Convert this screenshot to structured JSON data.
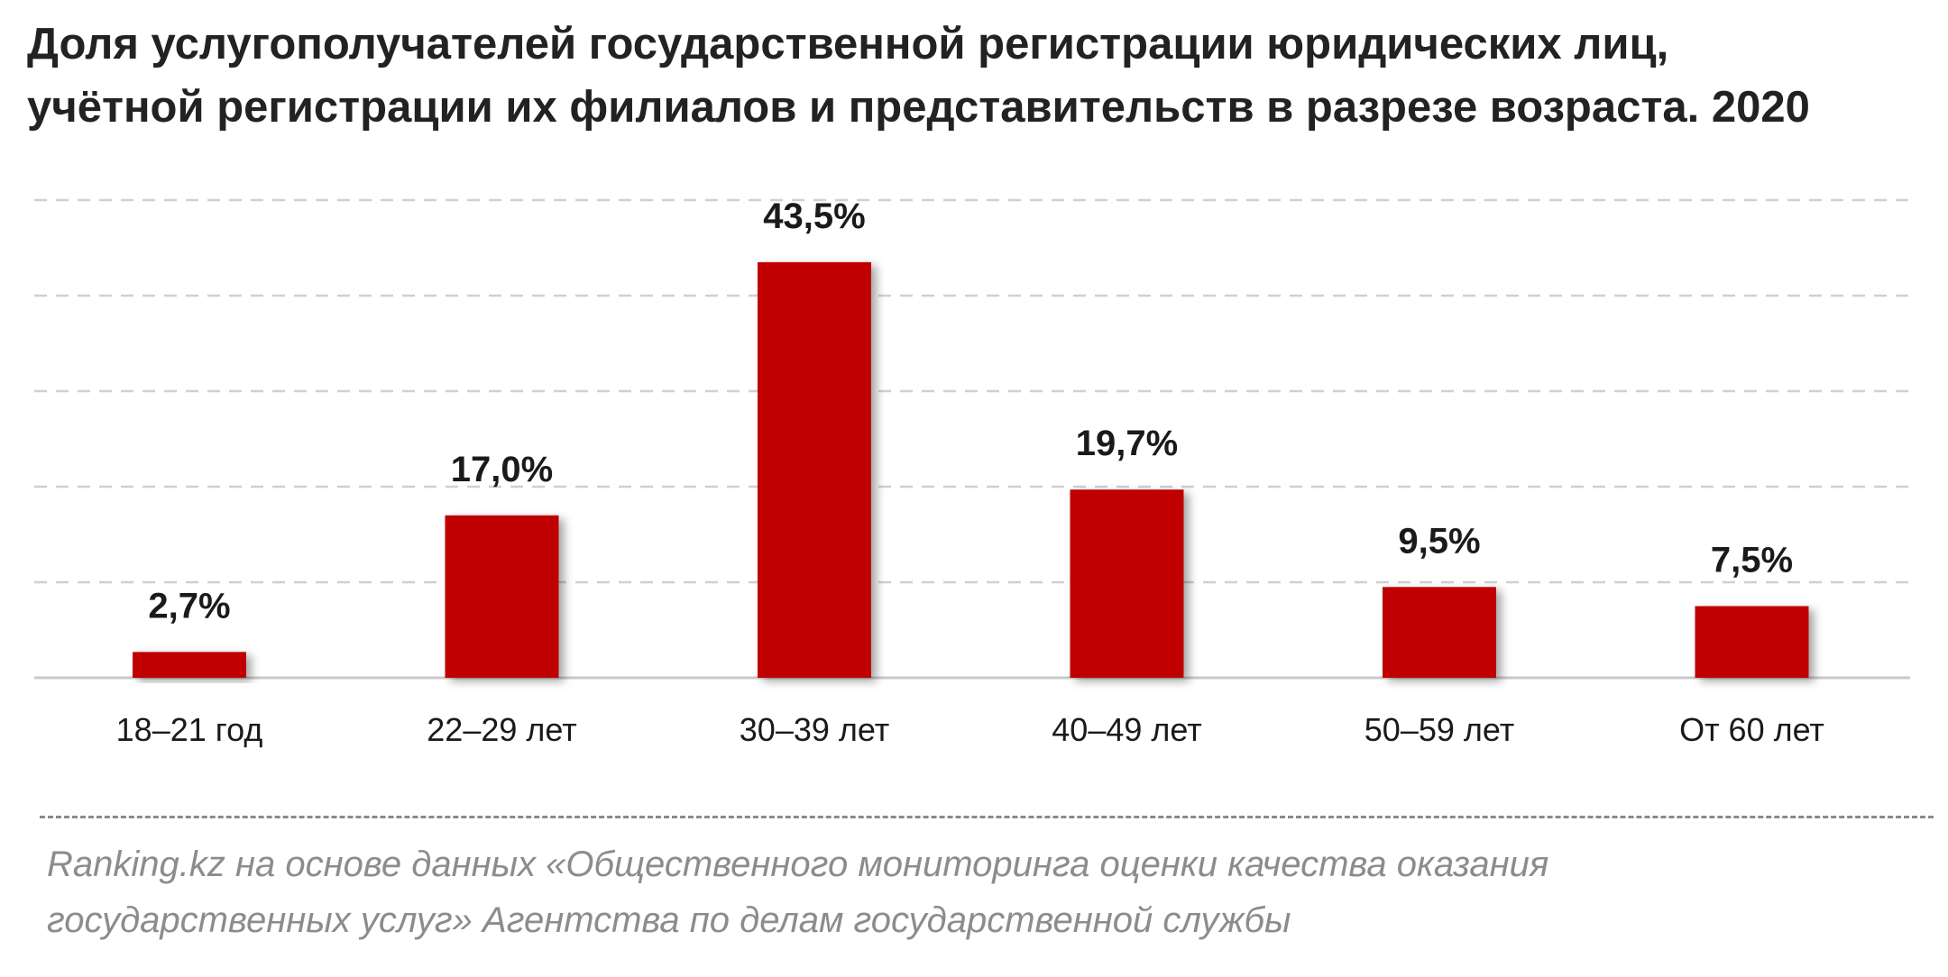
{
  "chart_data": {
    "type": "bar",
    "title_lines": [
      "Доля услугополучателей государственной регистрации юридических лиц,",
      "учётной регистрации их филиалов и представительств в разрезе возраста. 2020"
    ],
    "categories": [
      "18–21 год",
      "22–29 лет",
      "30–39 лет",
      "40–49 лет",
      "50–59 лет",
      "От 60 лет"
    ],
    "values": [
      2.7,
      17.0,
      43.5,
      19.7,
      9.5,
      7.5
    ],
    "value_labels": [
      "2,7%",
      "17,0%",
      "43,5%",
      "19,7%",
      "9,5%",
      "7,5%"
    ],
    "ylim": [
      0,
      50
    ],
    "grid": true,
    "legend": "none",
    "colors": {
      "bar": "#c00000",
      "grid": "#d0d0d0",
      "axis": "#c8c8c8"
    }
  },
  "source_lines": [
    "Ranking.kz на основе данных «Общественного мониторинга оценки качества оказания",
    "государственных услуг» Агентства по делам государственной службы"
  ]
}
